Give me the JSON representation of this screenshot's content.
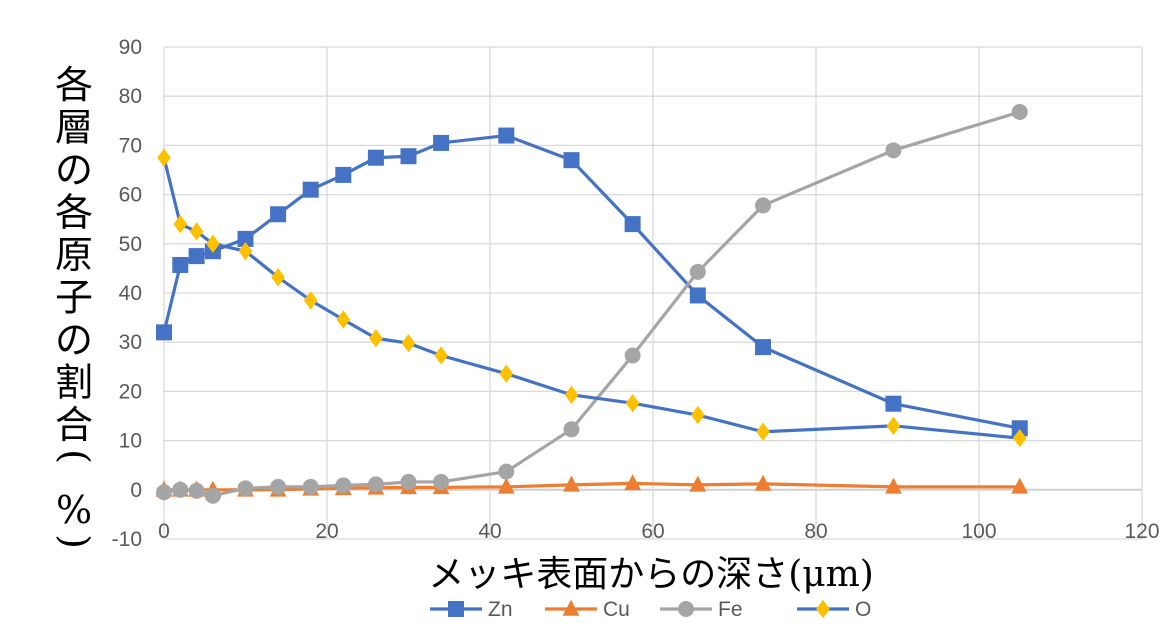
{
  "chart_data": {
    "type": "line",
    "xlabel": "メッキ表面からの深さ(μm)",
    "ylabel": "各層の各原子の割合(%)",
    "xlim": [
      0,
      120
    ],
    "ylim": [
      -10,
      90
    ],
    "x_ticks": [
      0,
      20,
      40,
      60,
      80,
      100,
      120
    ],
    "y_ticks": [
      -10,
      0,
      10,
      20,
      30,
      40,
      50,
      60,
      70,
      80,
      90
    ],
    "grid": true,
    "legend_position": "bottom",
    "series": [
      {
        "name": "Zn",
        "color": "#4472C4",
        "marker": "square",
        "x": [
          0,
          2,
          4,
          6,
          10,
          14,
          18,
          22,
          26,
          30,
          34,
          42,
          50,
          57.5,
          65.5,
          73.5,
          89.5,
          105
        ],
        "y": [
          32,
          45.7,
          47.5,
          48.5,
          51,
          56,
          61,
          64,
          67.5,
          67.8,
          70.5,
          72,
          67,
          54,
          39.5,
          29,
          17.5,
          12.5
        ]
      },
      {
        "name": "Cu",
        "color": "#ED7D31",
        "marker": "triangle",
        "x": [
          0,
          2,
          4,
          6,
          10,
          14,
          18,
          22,
          26,
          30,
          34,
          42,
          50,
          57.5,
          65.5,
          73.5,
          89.5,
          105
        ],
        "y": [
          0,
          0,
          0,
          0,
          0,
          0,
          0.2,
          0.3,
          0.4,
          0.5,
          0.5,
          0.6,
          1,
          1.3,
          1,
          1.2,
          0.6,
          0.6
        ]
      },
      {
        "name": "Fe",
        "color": "#A5A5A5",
        "marker": "circle",
        "x": [
          0,
          2,
          4,
          6,
          10,
          14,
          18,
          22,
          26,
          30,
          34,
          42,
          50,
          57.5,
          65.5,
          73.5,
          89.5,
          105
        ],
        "y": [
          -0.5,
          0,
          -0.2,
          -1.2,
          0.3,
          0.6,
          0.6,
          0.9,
          1.1,
          1.6,
          1.6,
          3.7,
          12.3,
          27.3,
          44.3,
          57.8,
          69,
          76.8
        ]
      },
      {
        "name": "O",
        "color": "#FFC000",
        "marker": "diamond",
        "line_color": "#4472C4",
        "x": [
          0,
          2,
          4,
          6,
          10,
          14,
          18,
          22,
          26,
          30,
          34,
          42,
          50,
          57.5,
          65.5,
          73.5,
          89.5,
          105
        ],
        "y": [
          67.5,
          54,
          52.5,
          50,
          48.5,
          43.2,
          38.5,
          34.6,
          30.8,
          29.8,
          27.3,
          23.6,
          19.3,
          17.6,
          15.2,
          11.8,
          13,
          10.5
        ]
      }
    ]
  }
}
